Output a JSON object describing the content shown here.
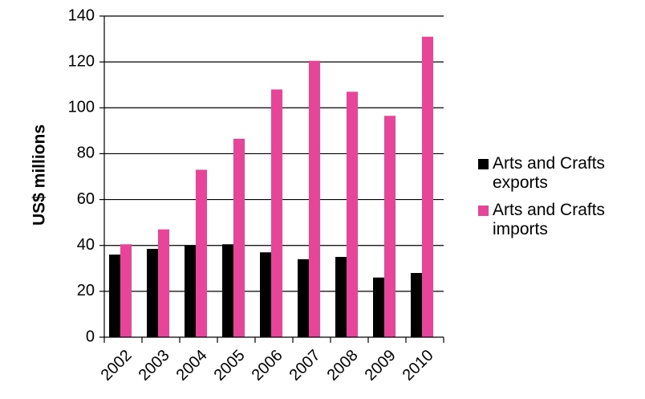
{
  "chart_data": {
    "type": "bar",
    "categories": [
      "2002",
      "2003",
      "2004",
      "2005",
      "2006",
      "2007",
      "2008",
      "2009",
      "2010"
    ],
    "series": [
      {
        "name": "Arts and Crafts exports",
        "color": "#000000",
        "values": [
          36,
          38.5,
          40,
          40.5,
          37,
          34,
          35,
          26,
          28
        ]
      },
      {
        "name": "Arts and Crafts imports",
        "color": "#e8449a",
        "values": [
          40.5,
          47,
          73,
          86.5,
          108,
          120.5,
          107,
          96.5,
          131
        ]
      }
    ],
    "title": "",
    "xlabel": "",
    "ylabel": "US$ millions",
    "ylim": [
      0,
      140
    ],
    "yticks": [
      "0",
      "20",
      "40",
      "60",
      "80",
      "100",
      "120",
      "140"
    ],
    "grid": true,
    "legend_position": "right"
  }
}
